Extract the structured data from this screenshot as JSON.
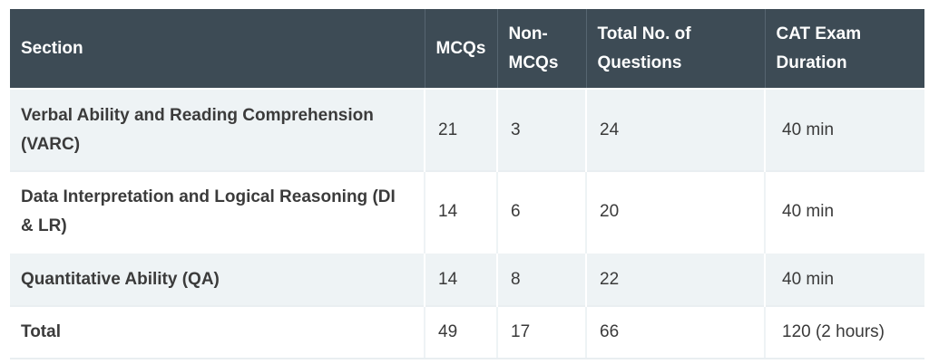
{
  "table": {
    "headers": {
      "section": "Section",
      "mcqs": "MCQs",
      "non_mcqs": "Non-MCQs",
      "total": "Total No. of Questions",
      "duration": "CAT Exam Duration"
    },
    "rows": [
      {
        "section": "Verbal Ability and Reading Comprehension (VARC)",
        "mcqs": "21",
        "non_mcqs": "3",
        "total": "24",
        "duration": "40 min"
      },
      {
        "section": "Data Interpretation and Logical Reasoning (DI & LR)",
        "mcqs": "14",
        "non_mcqs": "6",
        "total": "20",
        "duration": "40 min"
      },
      {
        "section": "Quantitative Ability (QA)",
        "mcqs": "14",
        "non_mcqs": "8",
        "total": "22",
        "duration": "40 min"
      },
      {
        "section": "Total",
        "mcqs": "49",
        "non_mcqs": "17",
        "total": "66",
        "duration": "120 (2 hours)"
      }
    ]
  },
  "colors": {
    "header_bg": "#3d4b55",
    "header_text": "#ffffff",
    "row_alt_bg": "#eef3f5",
    "text": "#3a3a3a"
  }
}
